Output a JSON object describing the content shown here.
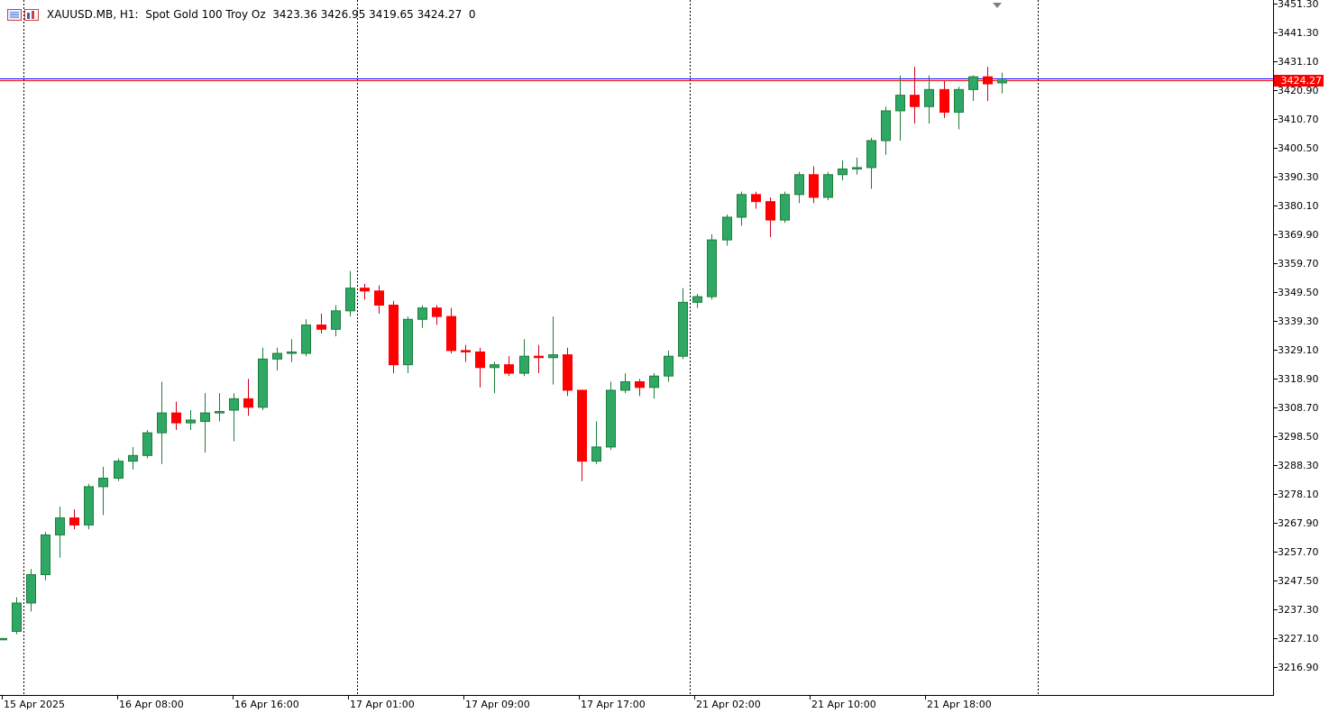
{
  "header": {
    "symbol_text": "XAUUSD.MB, H1:  Spot Gold 100 Troy Oz  3423.36 3426.95 3419.65 3424.27  0",
    "icons": [
      "chart-list-icon",
      "chart-bars-icon"
    ]
  },
  "price_axis": {
    "labels": [
      "3451.30",
      "3441.30",
      "3431.10",
      "3420.90",
      "3410.70",
      "3400.50",
      "3390.30",
      "3380.10",
      "3369.90",
      "3359.70",
      "3349.50",
      "3339.30",
      "3329.10",
      "3318.90",
      "3308.70",
      "3298.50",
      "3288.30",
      "3278.10",
      "3267.90",
      "3257.70",
      "3247.50",
      "3237.30",
      "3227.10",
      "3216.90"
    ],
    "current_price": "3424.27"
  },
  "time_axis": {
    "labels": [
      "15 Apr 2025",
      "16 Apr 08:00",
      "16 Apr 16:00",
      "17 Apr 01:00",
      "17 Apr 09:00",
      "17 Apr 17:00",
      "21 Apr 02:00",
      "21 Apr 10:00",
      "21 Apr 18:00"
    ]
  },
  "colors": {
    "bull": "#2fa765",
    "bear": "#ff0000",
    "bull_wick": "#1e7d3a",
    "bear_wick": "#d0001a",
    "bid_line": "#ff0000",
    "ask_line": "#0000ff",
    "separator": "#000000",
    "background": "#ffffff"
  },
  "chart_data": {
    "type": "candlestick",
    "symbol": "XAUUSD.MB",
    "timeframe": "H1",
    "ylim": [
      3210.0,
      3451.3
    ],
    "bid": 3424.27,
    "ask": 3425.0,
    "candles": [
      {
        "o": 3227.5,
        "h": 3227.5,
        "l": 3227.5,
        "c": 3227.5
      },
      {
        "o": 3230.0,
        "h": 3242.0,
        "l": 3229.0,
        "c": 3240.0
      },
      {
        "o": 3240.0,
        "h": 3252.0,
        "l": 3237.0,
        "c": 3250.0
      },
      {
        "o": 3250.0,
        "h": 3265.0,
        "l": 3248.0,
        "c": 3264.0
      },
      {
        "o": 3264.0,
        "h": 3274.0,
        "l": 3256.0,
        "c": 3270.0
      },
      {
        "o": 3270.0,
        "h": 3273.0,
        "l": 3266.0,
        "c": 3267.5
      },
      {
        "o": 3267.5,
        "h": 3282.0,
        "l": 3266.0,
        "c": 3281.0
      },
      {
        "o": 3281.0,
        "h": 3288.0,
        "l": 3271.0,
        "c": 3284.0
      },
      {
        "o": 3284.0,
        "h": 3291.0,
        "l": 3283.0,
        "c": 3290.0
      },
      {
        "o": 3290.0,
        "h": 3295.0,
        "l": 3287.0,
        "c": 3292.0
      },
      {
        "o": 3292.0,
        "h": 3301.0,
        "l": 3291.0,
        "c": 3300.0
      },
      {
        "o": 3300.0,
        "h": 3318.0,
        "l": 3289.0,
        "c": 3307.0
      },
      {
        "o": 3307.0,
        "h": 3311.0,
        "l": 3301.0,
        "c": 3303.5
      },
      {
        "o": 3303.5,
        "h": 3308.0,
        "l": 3301.0,
        "c": 3304.5
      },
      {
        "o": 3304.0,
        "h": 3314.0,
        "l": 3293.0,
        "c": 3307.0
      },
      {
        "o": 3307.0,
        "h": 3314.0,
        "l": 3304.0,
        "c": 3307.5
      },
      {
        "o": 3308.0,
        "h": 3314.0,
        "l": 3297.0,
        "c": 3312.0
      },
      {
        "o": 3312.0,
        "h": 3319.0,
        "l": 3306.0,
        "c": 3309.0
      },
      {
        "o": 3309.0,
        "h": 3330.0,
        "l": 3308.0,
        "c": 3326.0
      },
      {
        "o": 3326.0,
        "h": 3330.0,
        "l": 3322.0,
        "c": 3328.0
      },
      {
        "o": 3328.0,
        "h": 3333.0,
        "l": 3325.0,
        "c": 3328.5
      },
      {
        "o": 3328.0,
        "h": 3340.0,
        "l": 3327.0,
        "c": 3338.0
      },
      {
        "o": 3338.0,
        "h": 3342.0,
        "l": 3335.0,
        "c": 3336.5
      },
      {
        "o": 3336.5,
        "h": 3345.0,
        "l": 3334.0,
        "c": 3343.0
      },
      {
        "o": 3343.0,
        "h": 3357.0,
        "l": 3341.0,
        "c": 3351.0
      },
      {
        "o": 3351.0,
        "h": 3352.5,
        "l": 3347.0,
        "c": 3350.0
      },
      {
        "o": 3350.0,
        "h": 3352.0,
        "l": 3342.0,
        "c": 3345.0
      },
      {
        "o": 3345.0,
        "h": 3346.5,
        "l": 3321.0,
        "c": 3324.0
      },
      {
        "o": 3324.0,
        "h": 3341.0,
        "l": 3321.0,
        "c": 3340.0
      },
      {
        "o": 3340.0,
        "h": 3345.0,
        "l": 3337.0,
        "c": 3344.0
      },
      {
        "o": 3344.0,
        "h": 3345.0,
        "l": 3338.0,
        "c": 3341.0
      },
      {
        "o": 3341.0,
        "h": 3344.0,
        "l": 3328.0,
        "c": 3329.0
      },
      {
        "o": 3329.0,
        "h": 3331.0,
        "l": 3325.0,
        "c": 3328.5
      },
      {
        "o": 3328.5,
        "h": 3330.0,
        "l": 3316.0,
        "c": 3323.0
      },
      {
        "o": 3323.0,
        "h": 3325.0,
        "l": 3314.0,
        "c": 3324.0
      },
      {
        "o": 3324.0,
        "h": 3327.0,
        "l": 3320.0,
        "c": 3321.0
      },
      {
        "o": 3321.0,
        "h": 3333.0,
        "l": 3320.0,
        "c": 3327.0
      },
      {
        "o": 3327.0,
        "h": 3331.0,
        "l": 3321.0,
        "c": 3326.5
      },
      {
        "o": 3326.5,
        "h": 3341.0,
        "l": 3317.0,
        "c": 3327.5
      },
      {
        "o": 3327.5,
        "h": 3330.0,
        "l": 3313.0,
        "c": 3315.0
      },
      {
        "o": 3315.0,
        "h": 3315.0,
        "l": 3283.0,
        "c": 3290.0
      },
      {
        "o": 3290.0,
        "h": 3304.0,
        "l": 3289.0,
        "c": 3295.0
      },
      {
        "o": 3295.0,
        "h": 3318.0,
        "l": 3294.0,
        "c": 3315.0
      },
      {
        "o": 3315.0,
        "h": 3321.0,
        "l": 3314.0,
        "c": 3318.0
      },
      {
        "o": 3318.0,
        "h": 3319.0,
        "l": 3313.0,
        "c": 3316.0
      },
      {
        "o": 3316.0,
        "h": 3321.0,
        "l": 3312.0,
        "c": 3320.0
      },
      {
        "o": 3320.0,
        "h": 3329.0,
        "l": 3318.0,
        "c": 3327.0
      },
      {
        "o": 3327.0,
        "h": 3351.0,
        "l": 3326.0,
        "c": 3346.0
      },
      {
        "o": 3346.0,
        "h": 3349.0,
        "l": 3344.0,
        "c": 3348.0
      },
      {
        "o": 3348.0,
        "h": 3370.0,
        "l": 3347.0,
        "c": 3368.0
      },
      {
        "o": 3368.0,
        "h": 3377.0,
        "l": 3366.0,
        "c": 3376.0
      },
      {
        "o": 3376.0,
        "h": 3385.0,
        "l": 3373.0,
        "c": 3384.0
      },
      {
        "o": 3384.0,
        "h": 3385.0,
        "l": 3379.0,
        "c": 3381.5
      },
      {
        "o": 3381.5,
        "h": 3383.0,
        "l": 3369.0,
        "c": 3375.0
      },
      {
        "o": 3375.0,
        "h": 3385.0,
        "l": 3374.0,
        "c": 3384.0
      },
      {
        "o": 3384.0,
        "h": 3392.0,
        "l": 3381.0,
        "c": 3391.0
      },
      {
        "o": 3391.0,
        "h": 3394.0,
        "l": 3381.0,
        "c": 3383.0
      },
      {
        "o": 3383.0,
        "h": 3392.0,
        "l": 3382.0,
        "c": 3391.0
      },
      {
        "o": 3391.0,
        "h": 3396.0,
        "l": 3389.0,
        "c": 3393.0
      },
      {
        "o": 3393.0,
        "h": 3397.0,
        "l": 3391.0,
        "c": 3393.5
      },
      {
        "o": 3393.5,
        "h": 3404.0,
        "l": 3386.0,
        "c": 3403.0
      },
      {
        "o": 3403.0,
        "h": 3415.0,
        "l": 3398.0,
        "c": 3413.5
      },
      {
        "o": 3413.5,
        "h": 3426.0,
        "l": 3403.0,
        "c": 3419.0
      },
      {
        "o": 3419.0,
        "h": 3429.0,
        "l": 3409.0,
        "c": 3415.0
      },
      {
        "o": 3415.0,
        "h": 3426.0,
        "l": 3409.0,
        "c": 3421.0
      },
      {
        "o": 3421.0,
        "h": 3424.0,
        "l": 3411.0,
        "c": 3413.0
      },
      {
        "o": 3413.0,
        "h": 3422.0,
        "l": 3407.0,
        "c": 3421.0
      },
      {
        "o": 3421.0,
        "h": 3426.0,
        "l": 3417.0,
        "c": 3425.5
      },
      {
        "o": 3425.5,
        "h": 3429.0,
        "l": 3417.0,
        "c": 3423.0
      },
      {
        "o": 3423.36,
        "h": 3426.95,
        "l": 3419.65,
        "c": 3424.27
      }
    ],
    "session_separators_after_candle": [
      1,
      24,
      47,
      71
    ],
    "grid": false
  }
}
